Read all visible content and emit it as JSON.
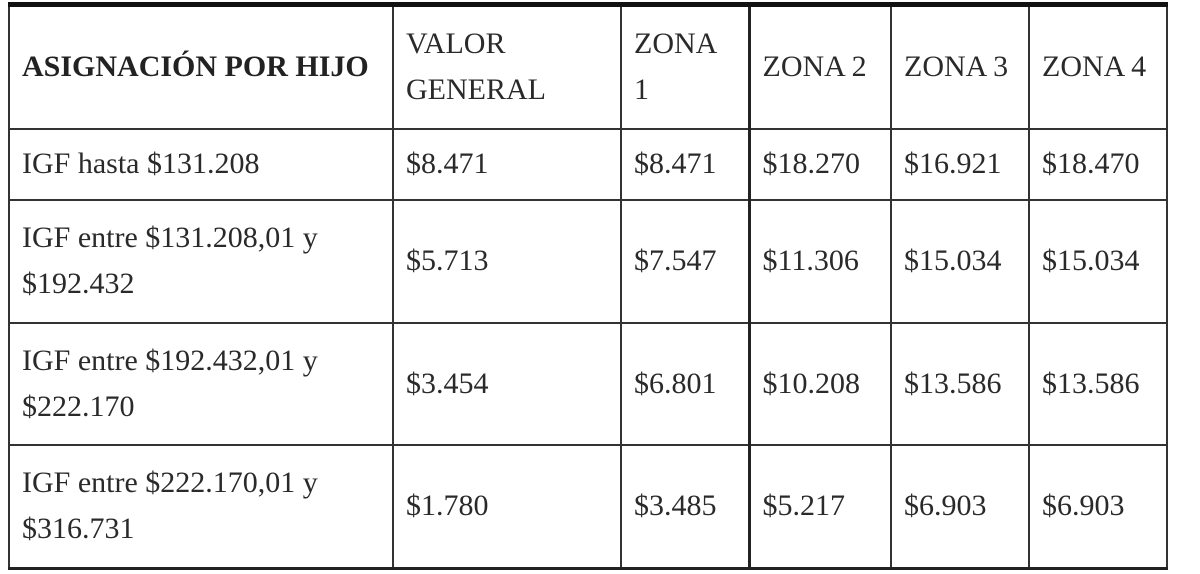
{
  "table": {
    "headers": [
      "ASIGNACIÓN POR HIJO",
      "VALOR GENERAL",
      "ZONA 1",
      "ZONA 2",
      "ZONA 3",
      "ZONA 4"
    ],
    "rows": [
      [
        "IGF hasta $131.208",
        "$8.471",
        "$8.471",
        "$18.270",
        "$16.921",
        "$18.470"
      ],
      [
        "IGF entre $131.208,01 y $192.432",
        "$5.713",
        "$7.547",
        "$11.306",
        "$15.034",
        "$15.034"
      ],
      [
        "IGF entre $192.432,01 y $222.170",
        "$3.454",
        "$6.801",
        "$10.208",
        "$13.586",
        "$13.586"
      ],
      [
        "IGF entre $222.170,01 y $316.731",
        "$1.780",
        "$3.485",
        "$5.217",
        "$6.903",
        "$6.903"
      ]
    ]
  }
}
